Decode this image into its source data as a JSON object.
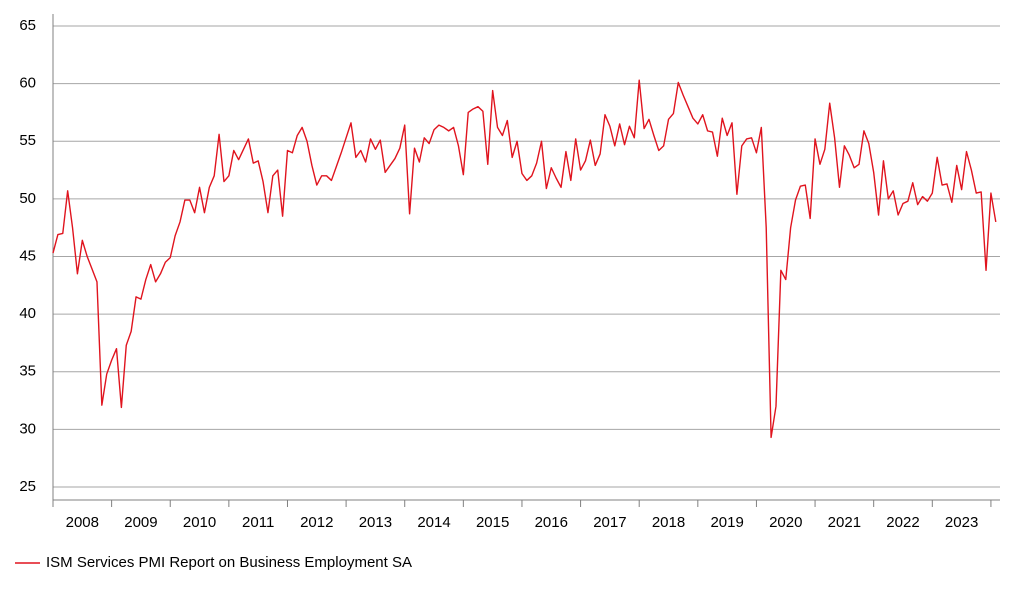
{
  "chart_data": {
    "type": "line",
    "categories": [
      "2008",
      null,
      null,
      null,
      null,
      null,
      null,
      null,
      null,
      null,
      null,
      null,
      "2009",
      null,
      null,
      null,
      null,
      null,
      null,
      null,
      null,
      null,
      null,
      null,
      "2010",
      null,
      null,
      null,
      null,
      null,
      null,
      null,
      null,
      null,
      null,
      null,
      "2011",
      null,
      null,
      null,
      null,
      null,
      null,
      null,
      null,
      null,
      null,
      null,
      "2012",
      null,
      null,
      null,
      null,
      null,
      null,
      null,
      null,
      null,
      null,
      null,
      "2013",
      null,
      null,
      null,
      null,
      null,
      null,
      null,
      null,
      null,
      null,
      null,
      "2014",
      null,
      null,
      null,
      null,
      null,
      null,
      null,
      null,
      null,
      null,
      null,
      "2015",
      null,
      null,
      null,
      null,
      null,
      null,
      null,
      null,
      null,
      null,
      null,
      "2016",
      null,
      null,
      null,
      null,
      null,
      null,
      null,
      null,
      null,
      null,
      null,
      "2017",
      null,
      null,
      null,
      null,
      null,
      null,
      null,
      null,
      null,
      null,
      null,
      "2018",
      null,
      null,
      null,
      null,
      null,
      null,
      null,
      null,
      null,
      null,
      null,
      "2019",
      null,
      null,
      null,
      null,
      null,
      null,
      null,
      null,
      null,
      null,
      null,
      "2020",
      null,
      null,
      null,
      null,
      null,
      null,
      null,
      null,
      null,
      null,
      null,
      "2021",
      null,
      null,
      null,
      null,
      null,
      null,
      null,
      null,
      null,
      null,
      null,
      "2022",
      null,
      null,
      null,
      null,
      null,
      null,
      null,
      null,
      null,
      null,
      null,
      "2023",
      null,
      null,
      null,
      null,
      null,
      null,
      null,
      null,
      null,
      null,
      null,
      null,
      null
    ],
    "series": [
      {
        "name": "ISM Services PMI Report on Business Employment SA",
        "color": "#e0141e",
        "values": [
          45.3,
          46.9,
          47.0,
          50.7,
          47.5,
          43.5,
          46.4,
          45.0,
          43.9,
          42.8,
          32.1,
          34.8,
          36.0,
          37.0,
          31.9,
          37.3,
          38.5,
          41.5,
          41.3,
          43.0,
          44.3,
          42.8,
          43.5,
          44.5,
          44.9,
          46.8,
          48.0,
          49.9,
          49.9,
          48.8,
          51.0,
          48.8,
          51.0,
          52.0,
          55.6,
          51.5,
          52.0,
          54.2,
          53.4,
          54.3,
          55.2,
          53.1,
          53.3,
          51.5,
          48.8,
          52.0,
          52.5,
          48.5,
          54.2,
          54.0,
          55.5,
          56.2,
          55.0,
          52.9,
          51.2,
          52.0,
          52.0,
          51.6,
          52.8,
          54.0,
          55.3,
          56.6,
          53.6,
          54.2,
          53.2,
          55.2,
          54.3,
          55.1,
          52.3,
          52.9,
          53.5,
          54.4,
          56.4,
          48.7,
          54.4,
          53.2,
          55.3,
          54.8,
          56.0,
          56.4,
          56.2,
          55.9,
          56.2,
          54.6,
          52.1,
          57.5,
          57.8,
          58.0,
          57.6,
          53.0,
          59.4,
          56.2,
          55.5,
          56.8,
          53.6,
          55.0,
          52.2,
          51.6,
          52.0,
          53.1,
          55.0,
          50.9,
          52.7,
          51.8,
          51.0,
          54.1,
          51.6,
          55.2,
          52.5,
          53.3,
          55.1,
          52.9,
          53.9,
          57.3,
          56.3,
          54.6,
          56.5,
          54.7,
          56.3,
          55.3,
          60.3,
          56.1,
          56.9,
          55.5,
          54.2,
          54.6,
          56.9,
          57.4,
          60.1,
          59.0,
          58.0,
          57.0,
          56.5,
          57.3,
          55.9,
          55.8,
          53.7,
          57.0,
          55.5,
          56.6,
          50.4,
          54.6,
          55.2,
          55.3,
          54.0,
          56.2,
          47.5,
          29.3,
          32.0,
          43.8,
          43.0,
          47.5,
          49.9,
          51.1,
          51.2,
          48.3,
          55.2,
          53.0,
          54.3,
          58.3,
          55.3,
          51.0,
          54.6,
          53.8,
          52.7,
          53.0,
          55.9,
          54.8,
          52.3,
          48.6,
          53.3,
          50.0,
          50.7,
          48.6,
          49.6,
          49.8,
          51.4,
          49.5,
          50.2,
          49.8,
          50.5,
          53.6,
          51.2,
          51.3,
          49.7,
          52.9,
          50.8,
          54.1,
          52.5,
          50.5,
          50.6,
          43.8,
          50.5,
          48.0
        ]
      }
    ],
    "ylim": [
      25,
      65
    ],
    "yticks": [
      25,
      30,
      35,
      40,
      45,
      50,
      55,
      60,
      65
    ],
    "grid": true,
    "legend": "bottom-left"
  }
}
